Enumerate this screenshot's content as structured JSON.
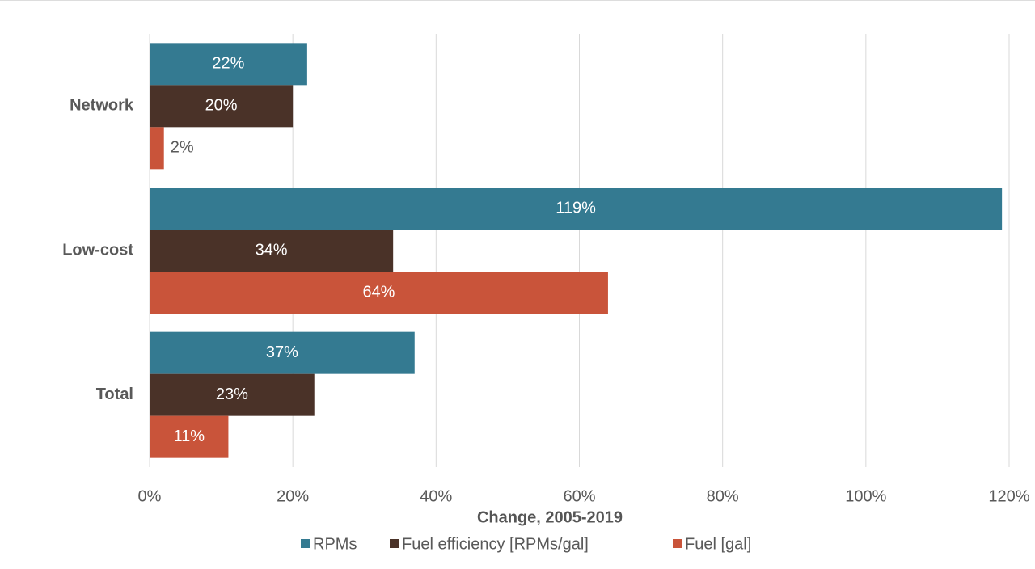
{
  "chart_data": {
    "type": "bar",
    "orientation": "horizontal",
    "x_label": "Change, 2005-2019",
    "categories": [
      "Network",
      "Low-cost",
      "Total"
    ],
    "series": [
      {
        "name": "RPMs",
        "color": "#347a91",
        "values": [
          22,
          119,
          37
        ],
        "value_labels": [
          "22%",
          "119%",
          "37%"
        ]
      },
      {
        "name": "Fuel efficiency [RPMs/gal]",
        "color": "#4a3228",
        "values": [
          20,
          34,
          23
        ],
        "value_labels": [
          "20%",
          "34%",
          "23%"
        ]
      },
      {
        "name": "Fuel [gal]",
        "color": "#c9543a",
        "values": [
          2,
          64,
          11
        ],
        "value_labels": [
          "2%",
          "64%",
          "11%"
        ]
      }
    ],
    "xlim": [
      0,
      120
    ],
    "xticks": [
      {
        "value": 0,
        "label": "0%"
      },
      {
        "value": 20,
        "label": "20%"
      },
      {
        "value": 40,
        "label": "40%"
      },
      {
        "value": 60,
        "label": "60%"
      },
      {
        "value": 80,
        "label": "80%"
      },
      {
        "value": 100,
        "label": "100%"
      },
      {
        "value": 120,
        "label": "120%"
      }
    ],
    "grid": true,
    "legend": "bottom"
  }
}
